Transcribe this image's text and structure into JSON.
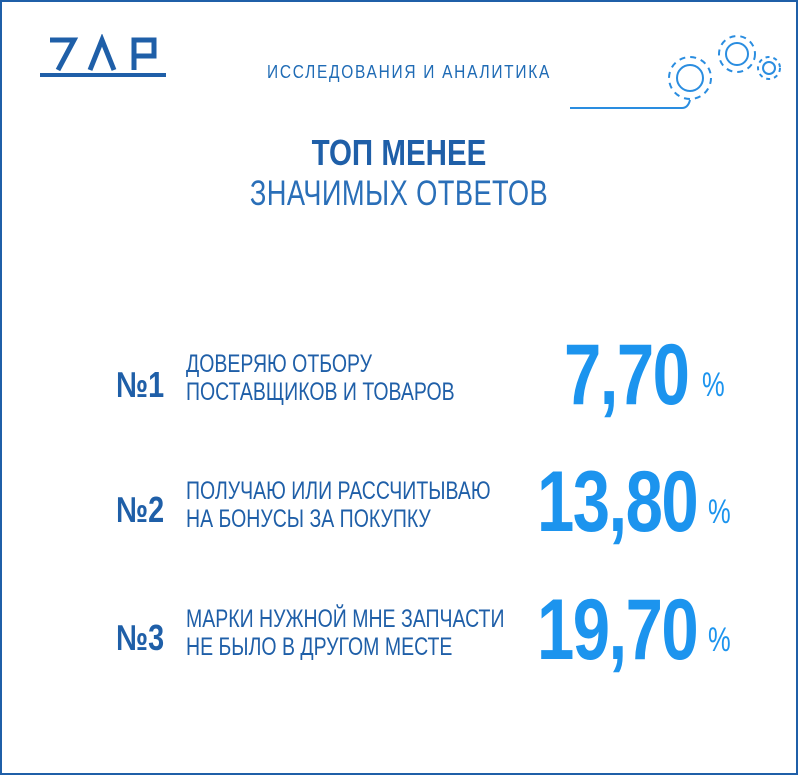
{
  "header": {
    "logo_text": "ZAP",
    "section_title": "ИССЛЕДОВАНИЯ И АНАЛИТИКА"
  },
  "heading": {
    "title": "ТОП МЕНЕЕ",
    "subtitle": "ЗНАЧИМЫХ ОТВЕТОВ"
  },
  "items": [
    {
      "rank": "№1",
      "line1": "ДОВЕРЯЮ ОТБОРУ",
      "line2": "ПОСТАВЩИКОВ И ТОВАРОВ",
      "value": "7,70",
      "unit": "%"
    },
    {
      "rank": "№2",
      "line1": "ПОЛУЧАЮ ИЛИ РАССЧИТЫВАЮ",
      "line2": "НА БОНУСЫ ЗА ПОКУПКУ",
      "value": "13,80",
      "unit": "%"
    },
    {
      "rank": "№3",
      "line1": "МАРКИ НУЖНОЙ МНЕ ЗАПЧАСТИ",
      "line2": "НЕ БЫЛО В ДРУГОМ МЕСТЕ",
      "value": "19,70",
      "unit": "%"
    }
  ],
  "icons": {
    "gears": "gears-icon"
  },
  "colors": {
    "dark_blue": "#1f5fa8",
    "accent_blue": "#1c94ee"
  }
}
